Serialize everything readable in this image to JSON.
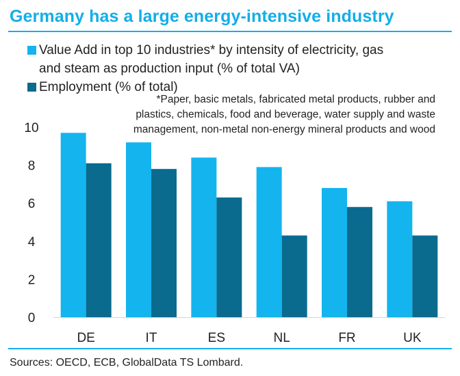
{
  "header": {
    "title": "Germany has a large energy-intensive industry"
  },
  "legend": [
    {
      "label_line1": "Value Add in top 10 industries* by intensity of electricity, gas",
      "label_line2": "and steam as production input (% of total VA)"
    },
    {
      "label_line1": "Employment (% of total)",
      "label_line2": ""
    }
  ],
  "note": {
    "lines": [
      "*Paper, basic metals, fabricated metal products, rubber and",
      "plastics, chemicals, food and beverage, water supply and waste",
      "management, non-metal non-energy mineral products and wood"
    ]
  },
  "footer": {
    "source": "Sources: OECD, ECB, GlobalData TS Lombard."
  },
  "chart_data": {
    "type": "bar",
    "categories": [
      "DE",
      "IT",
      "ES",
      "NL",
      "FR",
      "UK"
    ],
    "series": [
      {
        "name": "Value Add in top 10 industries* by intensity of electricity, gas and steam as production input (% of total VA)",
        "values": [
          9.7,
          9.2,
          8.4,
          7.9,
          6.8,
          6.1
        ],
        "color": "#14b4ef"
      },
      {
        "name": "Employment (% of total)",
        "values": [
          8.1,
          7.8,
          6.3,
          4.3,
          5.8,
          4.3
        ],
        "color": "#0a6b8f"
      }
    ],
    "yticks": [
      0,
      2,
      4,
      6,
      8,
      10
    ],
    "ylim": [
      0,
      10.2
    ],
    "xlabel": "",
    "ylabel": "",
    "grid": false,
    "legend_position": "top-left"
  }
}
